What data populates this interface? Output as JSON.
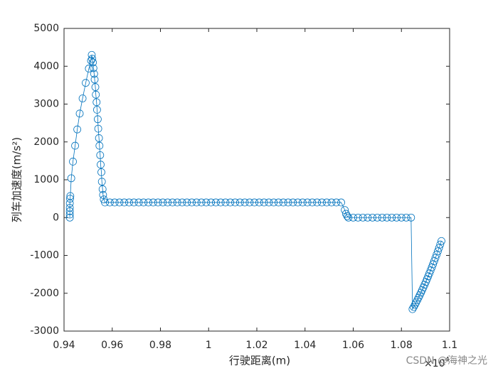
{
  "chart_data": {
    "type": "line",
    "x_label": "行驶距离(m)",
    "y_label": "列车加速度(m/s²)",
    "x_exponent": {
      "base": "×10",
      "power": "4"
    },
    "watermark": "CSDN @海神之光",
    "xlim": [
      0.94,
      1.1
    ],
    "ylim": [
      -3000,
      5000
    ],
    "xticks": [
      0.94,
      0.96,
      0.98,
      1,
      1.02,
      1.04,
      1.06,
      1.08,
      1.1
    ],
    "yticks": [
      -3000,
      -2000,
      -1000,
      0,
      1000,
      2000,
      3000,
      4000,
      5000
    ],
    "grid": false,
    "marker": "circle",
    "series": [
      {
        "color": "#0072bd",
        "x": [
          0.9424,
          0.9424,
          0.9424,
          0.9424,
          0.9424,
          0.9425,
          0.9426,
          0.943,
          0.9437,
          0.9446,
          0.9455,
          0.9465,
          0.9477,
          0.949,
          0.9503,
          0.9512,
          0.9515,
          0.9517,
          0.952,
          0.9522,
          0.9525,
          0.9527,
          0.953,
          0.9532,
          0.9535,
          0.9537,
          0.954,
          0.9542,
          0.9545,
          0.9547,
          0.955,
          0.9552,
          0.9555,
          0.9557,
          0.956,
          0.9562,
          0.9565,
          0.957,
          0.959,
          0.961,
          0.963,
          0.965,
          0.967,
          0.969,
          0.971,
          0.973,
          0.975,
          0.977,
          0.979,
          0.981,
          0.983,
          0.985,
          0.987,
          0.989,
          0.991,
          0.993,
          0.995,
          0.997,
          0.999,
          1.001,
          1.003,
          1.005,
          1.007,
          1.009,
          1.011,
          1.013,
          1.015,
          1.017,
          1.019,
          1.021,
          1.023,
          1.025,
          1.027,
          1.029,
          1.031,
          1.033,
          1.035,
          1.037,
          1.039,
          1.041,
          1.043,
          1.045,
          1.047,
          1.049,
          1.051,
          1.053,
          1.055,
          1.0565,
          1.057,
          1.0575,
          1.058,
          1.06,
          1.062,
          1.064,
          1.066,
          1.068,
          1.07,
          1.072,
          1.074,
          1.076,
          1.078,
          1.08,
          1.082,
          1.084,
          1.0846,
          1.0851,
          1.0856,
          1.0861,
          1.0866,
          1.0871,
          1.0876,
          1.0881,
          1.0886,
          1.0891,
          1.0896,
          1.0901,
          1.0906,
          1.0911,
          1.0916,
          1.0921,
          1.0926,
          1.0931,
          1.0936,
          1.0941,
          1.0946,
          1.0951,
          1.0956,
          1.0961,
          1.0966
        ],
        "values": [
          0,
          80,
          170,
          260,
          380,
          500,
          570,
          1040,
          1480,
          1900,
          2330,
          2750,
          3150,
          3560,
          3940,
          4150,
          4300,
          4200,
          4100,
          3950,
          3800,
          3650,
          3450,
          3250,
          3050,
          2850,
          2600,
          2350,
          2100,
          1900,
          1650,
          1400,
          1200,
          950,
          750,
          600,
          480,
          400,
          400,
          400,
          400,
          400,
          400,
          400,
          400,
          400,
          400,
          400,
          400,
          400,
          400,
          400,
          400,
          400,
          400,
          400,
          400,
          400,
          400,
          400,
          400,
          400,
          400,
          400,
          400,
          400,
          400,
          400,
          400,
          400,
          400,
          400,
          400,
          400,
          400,
          400,
          400,
          400,
          400,
          400,
          400,
          400,
          400,
          400,
          400,
          400,
          400,
          200,
          100,
          40,
          0,
          0,
          0,
          0,
          0,
          0,
          0,
          0,
          0,
          0,
          0,
          0,
          0,
          0,
          -2420,
          -2362,
          -2303,
          -2242,
          -2180,
          -2116,
          -2051,
          -1984,
          -1916,
          -1846,
          -1775,
          -1702,
          -1628,
          -1552,
          -1475,
          -1396,
          -1316,
          -1234,
          -1151,
          -1066,
          -980,
          -892,
          -803,
          -712,
          -620
        ]
      }
    ]
  }
}
